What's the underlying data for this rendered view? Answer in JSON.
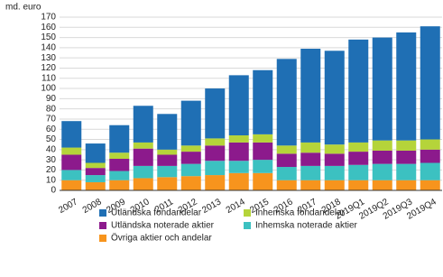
{
  "chart_data": {
    "type": "stacked-bar",
    "y_label": "md. euro",
    "categories": [
      "2007",
      "2008",
      "2009",
      "2010",
      "2011",
      "2012",
      "2013",
      "2014",
      "2015",
      "2016",
      "2017",
      "2018",
      "2019Q1",
      "2019Q2",
      "2019Q3",
      "2019Q4"
    ],
    "series": [
      {
        "name": "Utländska fondandelar",
        "color": "#1f6fb4",
        "values": [
          26,
          19,
          27,
          36,
          35,
          44,
          49,
          59,
          63,
          85,
          92,
          92,
          101,
          101,
          106,
          111
        ]
      },
      {
        "name": "Inhemska fondandelar",
        "color": "#b5d43a",
        "values": [
          7,
          5,
          6,
          6,
          5,
          6,
          7,
          7,
          8,
          8,
          10,
          9,
          9,
          10,
          10,
          10
        ]
      },
      {
        "name": "Utländska noterade aktier",
        "color": "#8c1a8c",
        "values": [
          15,
          7,
          12,
          17,
          11,
          12,
          15,
          18,
          17,
          13,
          13,
          12,
          13,
          13,
          13,
          13
        ]
      },
      {
        "name": "Inhemska noterade aktier",
        "color": "#3cc1c1",
        "values": [
          10,
          7,
          9,
          12,
          11,
          12,
          14,
          12,
          13,
          13,
          14,
          14,
          15,
          16,
          16,
          17
        ]
      },
      {
        "name": "Övriga aktier och andelar",
        "color": "#f7941d",
        "values": [
          10,
          8,
          10,
          12,
          13,
          14,
          15,
          17,
          17,
          10,
          10,
          10,
          10,
          10,
          10,
          10
        ]
      }
    ],
    "ylim": [
      0,
      170
    ],
    "yticks": [
      0,
      10,
      20,
      30,
      40,
      50,
      60,
      70,
      80,
      90,
      100,
      110,
      120,
      130,
      140,
      150,
      160,
      170
    ],
    "grid": true
  }
}
